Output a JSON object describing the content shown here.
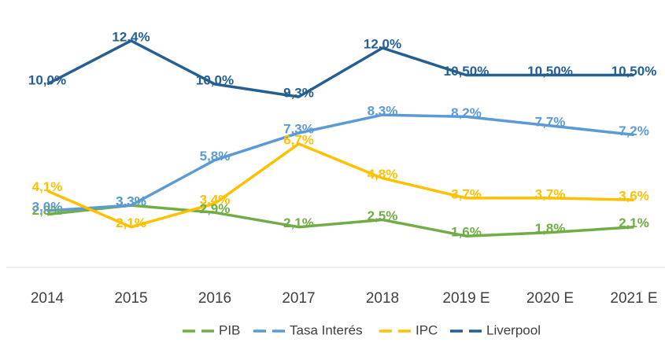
{
  "chart_data": {
    "type": "line",
    "categories": [
      "2014",
      "2015",
      "2016",
      "2017",
      "2018",
      "2019 E",
      "2020 E",
      "2021 E"
    ],
    "series": [
      {
        "name": "PIB",
        "color": "#70ad47",
        "values": [
          2.8,
          3.3,
          2.9,
          2.1,
          2.5,
          1.6,
          1.8,
          2.1
        ],
        "value_labels": [
          "2,8%",
          "3,3%",
          "2,9%",
          "2,1%",
          "2,5%",
          "1,6%",
          "1,8%",
          "2,1%"
        ]
      },
      {
        "name": "Tasa Interés",
        "color": "#5b9bd5",
        "values": [
          3.0,
          3.3,
          5.8,
          7.3,
          8.3,
          8.2,
          7.7,
          7.2
        ],
        "value_labels": [
          "3,0%",
          "3,3%",
          "5,8%",
          "7,3%",
          "8,3%",
          "8,2%",
          "7,7%",
          "7,2%"
        ]
      },
      {
        "name": "IPC",
        "color": "#ffc000",
        "values": [
          4.1,
          2.1,
          3.4,
          6.7,
          4.8,
          3.7,
          3.7,
          3.6
        ],
        "value_labels": [
          "4,1%",
          "2,1%",
          "3,4%",
          "6,7%",
          "4,8%",
          "3,7%",
          "3,7%",
          "3,6%"
        ]
      },
      {
        "name": "Liverpool",
        "color": "#255e91",
        "values": [
          10.0,
          12.4,
          10.0,
          9.3,
          12.0,
          10.5,
          10.5,
          10.5
        ],
        "value_labels": [
          "10,0%",
          "12,4%",
          "10,0%",
          "9,3%",
          "12,0%",
          "10,50%",
          "10,50%",
          "10,50%"
        ]
      }
    ]
  }
}
